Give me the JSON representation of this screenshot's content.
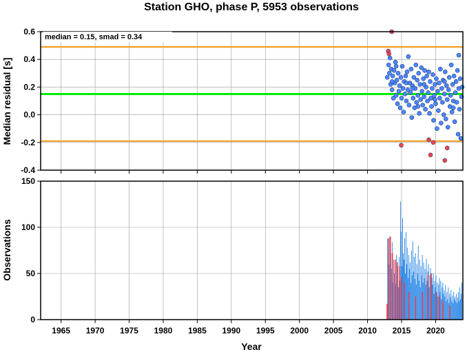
{
  "chart_data": [
    {
      "type": "scatter",
      "panel": "top",
      "title": "Station GHO, phase P, 5953 observations",
      "xlabel": "",
      "ylabel": "Median residual [s]",
      "xlim": [
        1962,
        2024
      ],
      "ylim": [
        -0.4,
        0.6
      ],
      "y_ticks": [
        -0.4,
        -0.2,
        0.0,
        0.2,
        0.4,
        0.6
      ],
      "x_ticks": [
        1965,
        1970,
        1975,
        1980,
        1985,
        1990,
        1995,
        2000,
        2005,
        2010,
        2015,
        2020
      ],
      "grid": true,
      "annotation": "median = 0.15, smad = 0.34",
      "median": 0.15,
      "smad": 0.34,
      "lines": [
        {
          "role": "median",
          "y": 0.15,
          "color": "#00ee00"
        },
        {
          "role": "upper-bound",
          "y": 0.49,
          "color": "#f0a020"
        },
        {
          "role": "lower-bound",
          "y": -0.19,
          "color": "#f0a020"
        }
      ],
      "series": [
        {
          "role": "inliers",
          "color": "#4d88ff",
          "points": [
            [
              2012.9,
              0.27
            ],
            [
              2013.1,
              0.36
            ],
            [
              2013.2,
              0.3
            ],
            [
              2013.3,
              0.41
            ],
            [
              2013.4,
              0.22
            ],
            [
              2013.5,
              0.33
            ],
            [
              2013.6,
              0.18
            ],
            [
              2013.7,
              0.28
            ],
            [
              2013.8,
              0.12
            ],
            [
              2013.9,
              0.32
            ],
            [
              2014.0,
              0.23
            ],
            [
              2014.1,
              0.38
            ],
            [
              2014.2,
              0.14
            ],
            [
              2014.3,
              0.25
            ],
            [
              2014.4,
              0.08
            ],
            [
              2014.5,
              0.3
            ],
            [
              2014.6,
              0.17
            ],
            [
              2014.7,
              0.21
            ],
            [
              2014.8,
              0.05
            ],
            [
              2014.9,
              0.27
            ],
            [
              2015.0,
              0.12
            ],
            [
              2015.1,
              0.35
            ],
            [
              2015.2,
              0.19
            ],
            [
              2015.3,
              0.02
            ],
            [
              2015.4,
              0.24
            ],
            [
              2015.5,
              0.15
            ],
            [
              2015.6,
              0.28
            ],
            [
              2015.7,
              0.1
            ],
            [
              2015.8,
              0.31
            ],
            [
              2015.9,
              0.18
            ],
            [
              2016.0,
              0.42
            ],
            [
              2016.1,
              0.07
            ],
            [
              2016.2,
              0.23
            ],
            [
              2016.3,
              0.16
            ],
            [
              2016.4,
              0.33
            ],
            [
              2016.5,
              -0.02
            ],
            [
              2016.6,
              0.21
            ],
            [
              2016.7,
              0.12
            ],
            [
              2016.8,
              0.27
            ],
            [
              2016.9,
              0.05
            ],
            [
              2017.0,
              0.19
            ],
            [
              2017.1,
              0.36
            ],
            [
              2017.2,
              0.09
            ],
            [
              2017.3,
              0.25
            ],
            [
              2017.4,
              0.14
            ],
            [
              2017.5,
              0.3
            ],
            [
              2017.6,
              0.01
            ],
            [
              2017.7,
              0.22
            ],
            [
              2017.8,
              0.11
            ],
            [
              2017.9,
              0.34
            ],
            [
              2018.0,
              0.17
            ],
            [
              2018.1,
              0.07
            ],
            [
              2018.2,
              0.26
            ],
            [
              2018.3,
              0.13
            ],
            [
              2018.4,
              0.32
            ],
            [
              2018.5,
              0.04
            ],
            [
              2018.6,
              0.2
            ],
            [
              2018.7,
              0.28
            ],
            [
              2018.8,
              0.1
            ],
            [
              2018.9,
              0.16
            ],
            [
              2019.0,
              0.31
            ],
            [
              2019.1,
              0.01
            ],
            [
              2019.2,
              0.24
            ],
            [
              2019.3,
              0.12
            ],
            [
              2019.4,
              0.06
            ],
            [
              2019.5,
              0.19
            ],
            [
              2019.6,
              0.29
            ],
            [
              2019.7,
              -0.04
            ],
            [
              2019.8,
              0.14
            ],
            [
              2019.9,
              0.22
            ],
            [
              2020.0,
              0.08
            ],
            [
              2020.1,
              0.26
            ],
            [
              2020.2,
              -0.1
            ],
            [
              2020.3,
              0.17
            ],
            [
              2020.4,
              0.03
            ],
            [
              2020.5,
              0.23
            ],
            [
              2020.6,
              0.12
            ],
            [
              2020.7,
              0.33
            ],
            [
              2020.8,
              -0.06
            ],
            [
              2020.9,
              0.19
            ],
            [
              2021.0,
              0.09
            ],
            [
              2021.1,
              0.25
            ],
            [
              2021.2,
              0.0
            ],
            [
              2021.3,
              0.15
            ],
            [
              2021.4,
              0.31
            ],
            [
              2021.5,
              -0.03
            ],
            [
              2021.6,
              0.21
            ],
            [
              2021.7,
              0.11
            ],
            [
              2021.8,
              -0.09
            ],
            [
              2021.9,
              0.18
            ],
            [
              2022.0,
              0.27
            ],
            [
              2022.1,
              0.06
            ],
            [
              2022.2,
              0.14
            ],
            [
              2022.3,
              0.36
            ],
            [
              2022.4,
              0.02
            ],
            [
              2022.5,
              0.22
            ],
            [
              2022.6,
              0.1
            ],
            [
              2022.7,
              0.28
            ],
            [
              2022.8,
              -0.05
            ],
            [
              2022.9,
              0.16
            ],
            [
              2023.0,
              0.24
            ],
            [
              2023.1,
              0.09
            ],
            [
              2023.2,
              0.32
            ],
            [
              2023.3,
              -0.14
            ],
            [
              2023.4,
              0.19
            ],
            [
              2023.5,
              0.04
            ],
            [
              2023.6,
              0.26
            ],
            [
              2023.7,
              -0.17
            ],
            [
              2023.8,
              0.13
            ],
            [
              2023.9,
              0.2
            ],
            [
              2014.2,
              0.35
            ],
            [
              2015.7,
              0.23
            ],
            [
              2016.6,
              0.19
            ],
            [
              2018.3,
              0.22
            ],
            [
              2019.9,
              0.11
            ],
            [
              2021.3,
              0.24
            ],
            [
              2022.6,
              0.05
            ],
            [
              2023.4,
              0.43
            ],
            [
              2013.6,
              0.24
            ],
            [
              2017.4,
              0.06
            ]
          ]
        },
        {
          "role": "outliers",
          "color": "#ff4444",
          "points": [
            [
              2013.05,
              0.46
            ],
            [
              2013.15,
              0.44
            ],
            [
              2013.55,
              0.6
            ],
            [
              2014.95,
              -0.22
            ],
            [
              2019.0,
              -0.18
            ],
            [
              2019.25,
              -0.29
            ],
            [
              2019.65,
              -0.2
            ],
            [
              2021.35,
              -0.33
            ],
            [
              2021.7,
              -0.24
            ]
          ]
        }
      ]
    },
    {
      "type": "bar",
      "panel": "bottom",
      "xlabel": "Year",
      "ylabel": "Observations",
      "xlim": [
        1962,
        2024
      ],
      "ylim": [
        0,
        150
      ],
      "y_ticks": [
        0,
        50,
        100,
        150
      ],
      "x_ticks": [
        1965,
        1970,
        1975,
        1980,
        1985,
        1990,
        1995,
        2000,
        2005,
        2010,
        2015,
        2020
      ],
      "grid": true,
      "bin_width_years": 0.1,
      "series": [
        {
          "role": "counts",
          "color": "#3a8fe8",
          "x_start": 2012.8,
          "values": [
            17,
            88,
            75,
            60,
            90,
            45,
            72,
            55,
            84,
            40,
            65,
            50,
            62,
            38,
            70,
            48,
            58,
            35,
            68,
            42,
            128,
            95,
            58,
            110,
            72,
            65,
            88,
            50,
            95,
            60,
            78,
            45,
            70,
            55,
            62,
            40,
            75,
            48,
            85,
            52,
            68,
            44,
            72,
            38,
            60,
            50,
            80,
            42,
            65,
            35,
            58,
            48,
            70,
            40,
            62,
            45,
            55,
            38,
            66,
            42,
            52,
            60,
            35,
            48,
            56,
            30,
            45,
            38,
            50,
            28,
            42,
            35,
            48,
            30,
            40,
            25,
            38,
            45,
            30,
            42,
            22,
            35,
            40,
            28,
            32,
            25,
            38,
            20,
            30,
            22,
            35,
            18,
            28,
            24,
            32,
            20,
            26,
            18,
            30,
            22,
            25,
            20,
            28,
            18,
            24,
            30,
            20,
            35,
            22,
            28,
            40,
            25,
            32,
            48,
            30,
            42,
            26,
            45,
            35,
            40
          ]
        },
        {
          "role": "outlier-counts",
          "color": "#ff3333",
          "points": [
            [
              2012.8,
              17
            ],
            [
              2013.0,
              88
            ],
            [
              2013.3,
              90
            ],
            [
              2013.6,
              72
            ],
            [
              2014.0,
              65
            ],
            [
              2014.3,
              62
            ],
            [
              2014.6,
              58
            ],
            [
              2014.9,
              46
            ],
            [
              2015.3,
              40
            ],
            [
              2016.0,
              30
            ],
            [
              2017.0,
              25
            ],
            [
              2018.0,
              30
            ],
            [
              2018.8,
              48
            ],
            [
              2019.3,
              50
            ],
            [
              2020.0,
              30
            ],
            [
              2020.5,
              25
            ],
            [
              2021.0,
              20
            ],
            [
              2022.0,
              15
            ]
          ]
        }
      ]
    }
  ]
}
